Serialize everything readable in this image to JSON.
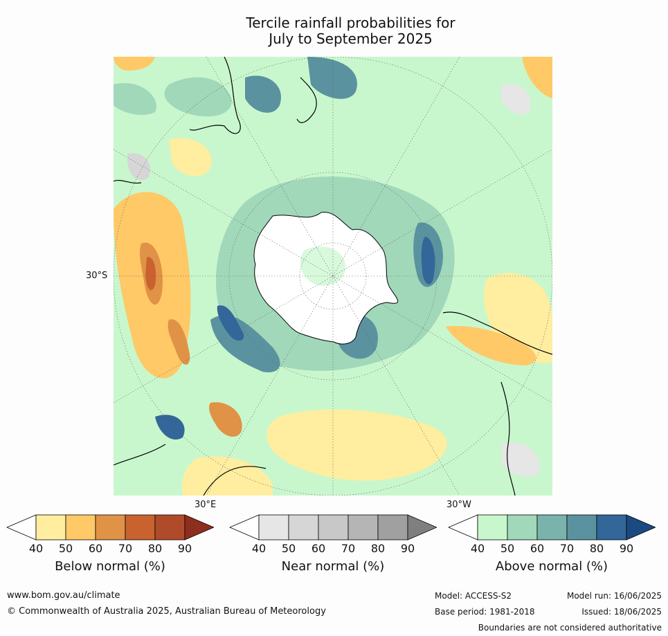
{
  "title_line1": "Tercile rainfall probabilities for",
  "title_line2": "July to September 2025",
  "map": {
    "labels": {
      "lat": "30°S",
      "lon_east": "30°E",
      "lon_west": "30°W"
    }
  },
  "colorbars": [
    {
      "label": "Below normal (%)",
      "ticks": [
        "40",
        "50",
        "60",
        "70",
        "80",
        "90"
      ],
      "colors": [
        "#ffeda0",
        "#fec966",
        "#e09246",
        "#c9622f",
        "#b04b2a",
        "#8e2e1e"
      ]
    },
    {
      "label": "Near normal (%)",
      "ticks": [
        "40",
        "50",
        "60",
        "70",
        "80",
        "90"
      ],
      "colors": [
        "#e6e6e6",
        "#d6d6d6",
        "#c8c8c8",
        "#b5b5b5",
        "#a0a0a0",
        "#7f7f7f"
      ]
    },
    {
      "label": "Above normal (%)",
      "ticks": [
        "40",
        "50",
        "60",
        "70",
        "80",
        "90"
      ],
      "colors": [
        "#c9f7cd",
        "#a1d8b9",
        "#7ab3ac",
        "#5a939f",
        "#336699",
        "#1a4a80"
      ]
    }
  ],
  "footer": {
    "url": "www.bom.gov.au/climate",
    "copyright": "© Commonwealth of Australia 2025, Australian Bureau of Meteorology",
    "model": "Model: ACCESS-S2",
    "base_period": "Base period: 1981-2018",
    "model_run": "Model run: 16/06/2025",
    "issued": "Issued: 18/06/2025",
    "disclaimer": "Boundaries are not considered authoritative"
  }
}
